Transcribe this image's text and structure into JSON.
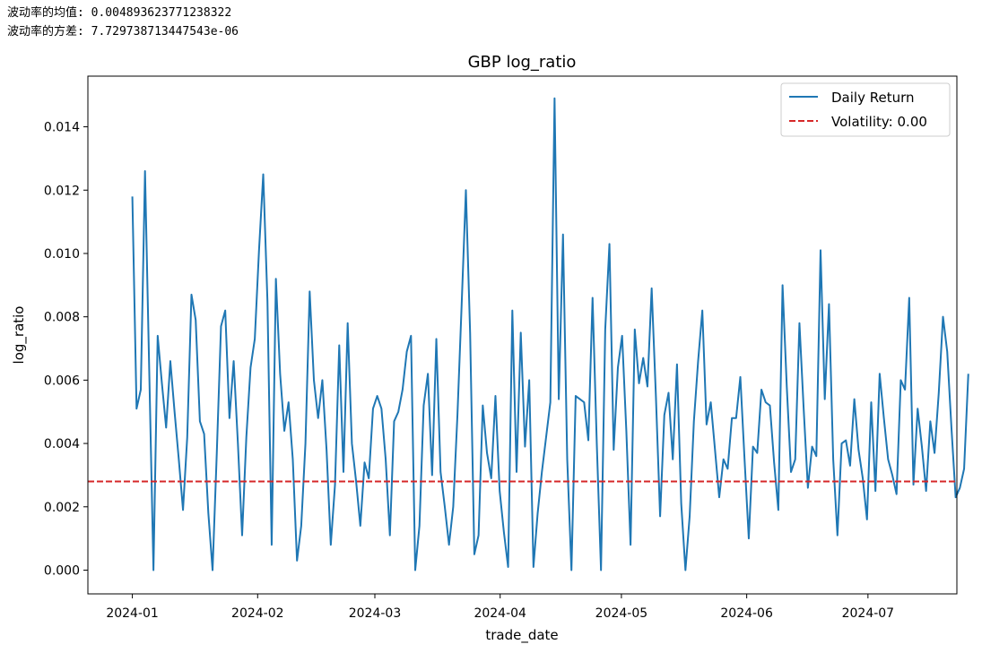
{
  "output_lines": {
    "mean_line": "波动率的均值: 0.004893623771238322",
    "variance_line": "波动率的方差: 7.729738713447543e-06"
  },
  "colors": {
    "series": "#1f77b4",
    "hline": "#d62728"
  },
  "chart_data": {
    "type": "line",
    "title": "GBP log_ratio",
    "xlabel": "trade_date",
    "ylabel": "log_ratio",
    "x_domain": [
      "2023-12-21",
      "2024-07-23"
    ],
    "ylim": [
      -0.00075,
      0.0156
    ],
    "y_ticks": [
      0.0,
      0.002,
      0.004,
      0.006,
      0.008,
      0.01,
      0.012,
      0.014
    ],
    "y_tick_labels": [
      "0.000",
      "0.002",
      "0.004",
      "0.006",
      "0.008",
      "0.010",
      "0.012",
      "0.014"
    ],
    "x_ticks": [
      "2024-01-01",
      "2024-02-01",
      "2024-03-01",
      "2024-04-01",
      "2024-05-01",
      "2024-06-01",
      "2024-07-01"
    ],
    "x_tick_labels": [
      "2024-01",
      "2024-02",
      "2024-03",
      "2024-04",
      "2024-05",
      "2024-06",
      "2024-07"
    ],
    "legend_position": "upper right",
    "series": [
      {
        "name": "Daily Return",
        "style": "solid",
        "start_date": "2024-01-01",
        "step_days": 1.0446,
        "values": [
          0.0118,
          0.0051,
          0.0057,
          0.0126,
          0.0063,
          0.0,
          0.0074,
          0.0059,
          0.0045,
          0.0066,
          0.005,
          0.0035,
          0.0019,
          0.0042,
          0.0087,
          0.0079,
          0.0047,
          0.0043,
          0.0018,
          0.0,
          0.0037,
          0.0077,
          0.0082,
          0.0048,
          0.0066,
          0.004,
          0.0011,
          0.0042,
          0.0064,
          0.0073,
          0.0101,
          0.0125,
          0.0085,
          0.0008,
          0.0092,
          0.0062,
          0.0044,
          0.0053,
          0.0035,
          0.0003,
          0.0014,
          0.004,
          0.0088,
          0.006,
          0.0048,
          0.006,
          0.0038,
          0.0008,
          0.0027,
          0.0071,
          0.0031,
          0.0078,
          0.004,
          0.0028,
          0.0014,
          0.0034,
          0.0029,
          0.0051,
          0.0055,
          0.0051,
          0.0035,
          0.0011,
          0.0047,
          0.005,
          0.0057,
          0.0069,
          0.0074,
          0.0,
          0.0014,
          0.0052,
          0.0062,
          0.003,
          0.0073,
          0.0031,
          0.002,
          0.0008,
          0.002,
          0.0049,
          0.0084,
          0.012,
          0.0075,
          0.0005,
          0.0011,
          0.0052,
          0.0037,
          0.0029,
          0.0055,
          0.0025,
          0.0012,
          0.0001,
          0.0082,
          0.0031,
          0.0075,
          0.0039,
          0.006,
          0.0001,
          0.0018,
          0.0031,
          0.0042,
          0.0053,
          0.0149,
          0.0054,
          0.0106,
          0.0035,
          0.0,
          0.0055,
          0.0054,
          0.0053,
          0.0041,
          0.0086,
          0.004,
          0.0,
          0.0076,
          0.0103,
          0.0038,
          0.0064,
          0.0074,
          0.0044,
          0.0008,
          0.0076,
          0.0059,
          0.0067,
          0.0058,
          0.0089,
          0.0055,
          0.0017,
          0.0049,
          0.0056,
          0.0035,
          0.0065,
          0.0021,
          0.0,
          0.0017,
          0.0047,
          0.0066,
          0.0082,
          0.0046,
          0.0053,
          0.0038,
          0.0023,
          0.0035,
          0.0032,
          0.0048,
          0.0048,
          0.0061,
          0.0035,
          0.001,
          0.0039,
          0.0037,
          0.0057,
          0.0053,
          0.0052,
          0.0034,
          0.0019,
          0.009,
          0.0058,
          0.0031,
          0.0035,
          0.0078,
          0.0051,
          0.0026,
          0.0039,
          0.0036,
          0.0101,
          0.0054,
          0.0084,
          0.0035,
          0.0011,
          0.004,
          0.0041,
          0.0033,
          0.0054,
          0.0038,
          0.0029,
          0.0016,
          0.0053,
          0.0025,
          0.0062,
          0.0048,
          0.0035,
          0.003,
          0.0024,
          0.006,
          0.0057,
          0.0086,
          0.0027,
          0.0051,
          0.0039,
          0.0025,
          0.0047,
          0.0037,
          0.0056,
          0.008,
          0.0069,
          0.0045,
          0.0023,
          0.0026,
          0.0032,
          0.0062
        ]
      },
      {
        "name": "Volatility: 0.00",
        "style": "dashed",
        "hline_value": 0.0028
      }
    ]
  }
}
